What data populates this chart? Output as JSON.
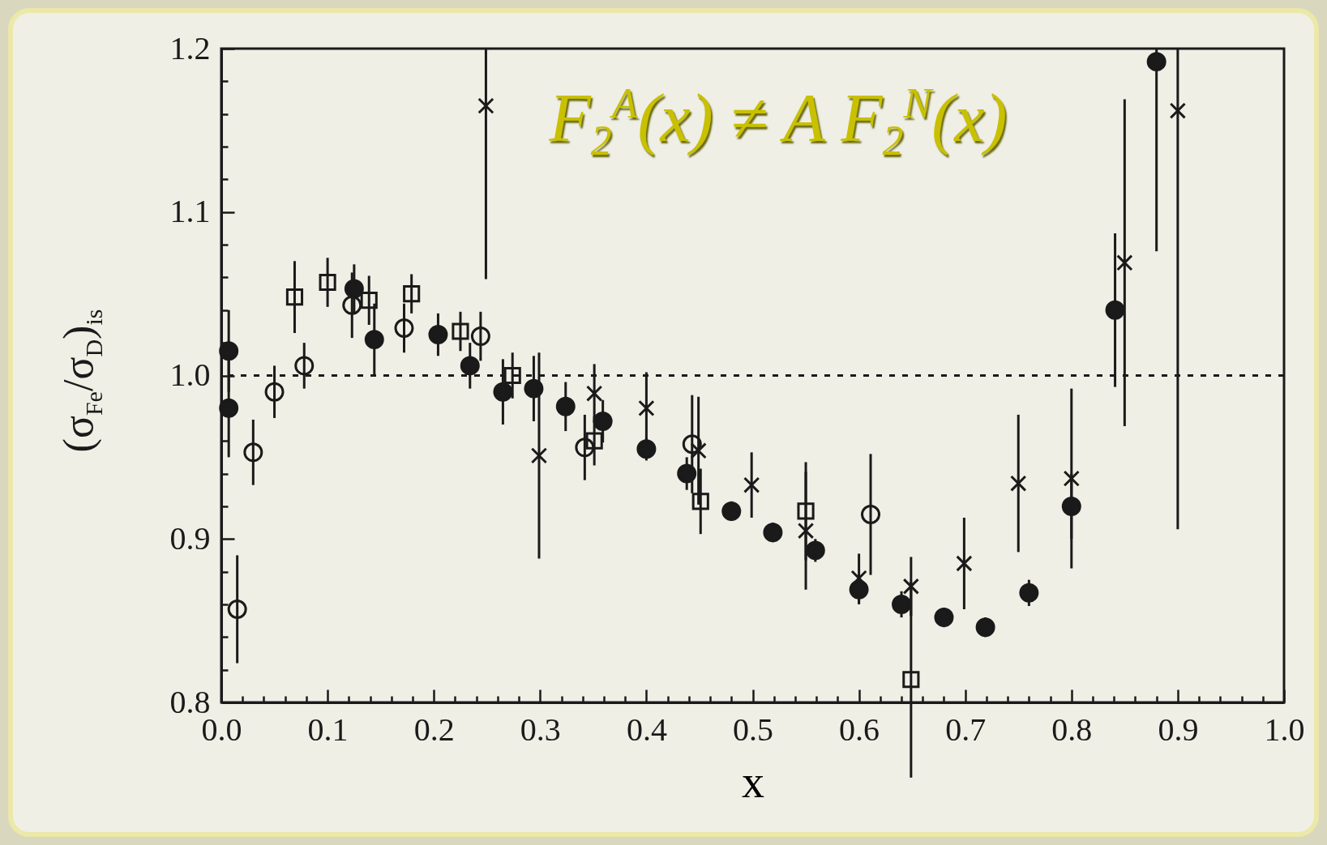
{
  "chart_data": {
    "type": "scatter",
    "xlabel": "x",
    "ylabel": "(σ$_{Fe}$/σ$_{D}$)$_{is}$",
    "annotations": [
      "F$_{2}$$^{A}$(x) ≠ A F$_{2}$$^{N}$(x)"
    ],
    "xlim": [
      0,
      1
    ],
    "ylim": [
      0.8,
      1.2
    ],
    "xticks": [
      {
        "value": 0,
        "label": "0.0"
      },
      {
        "value": 0.02,
        "label": null
      },
      {
        "value": 0.04,
        "label": null
      },
      {
        "value": 0.06,
        "label": null
      },
      {
        "value": 0.08,
        "label": null
      },
      {
        "value": 0.1,
        "label": "0.1"
      },
      {
        "value": 0.12,
        "label": null
      },
      {
        "value": 0.14,
        "label": null
      },
      {
        "value": 0.16,
        "label": null
      },
      {
        "value": 0.18,
        "label": null
      },
      {
        "value": 0.2,
        "label": "0.2"
      },
      {
        "value": 0.22,
        "label": null
      },
      {
        "value": 0.24,
        "label": null
      },
      {
        "value": 0.26,
        "label": null
      },
      {
        "value": 0.28,
        "label": null
      },
      {
        "value": 0.3,
        "label": "0.3"
      },
      {
        "value": 0.32,
        "label": null
      },
      {
        "value": 0.34,
        "label": null
      },
      {
        "value": 0.36,
        "label": null
      },
      {
        "value": 0.38,
        "label": null
      },
      {
        "value": 0.4,
        "label": "0.4"
      },
      {
        "value": 0.42,
        "label": null
      },
      {
        "value": 0.44,
        "label": null
      },
      {
        "value": 0.46,
        "label": null
      },
      {
        "value": 0.48,
        "label": null
      },
      {
        "value": 0.5,
        "label": "0.5"
      },
      {
        "value": 0.52,
        "label": null
      },
      {
        "value": 0.54,
        "label": null
      },
      {
        "value": 0.56,
        "label": null
      },
      {
        "value": 0.58,
        "label": null
      },
      {
        "value": 0.6,
        "label": "0.6"
      },
      {
        "value": 0.62,
        "label": null
      },
      {
        "value": 0.64,
        "label": null
      },
      {
        "value": 0.66,
        "label": null
      },
      {
        "value": 0.68,
        "label": null
      },
      {
        "value": 0.7,
        "label": "0.7"
      },
      {
        "value": 0.72,
        "label": null
      },
      {
        "value": 0.74,
        "label": null
      },
      {
        "value": 0.76,
        "label": null
      },
      {
        "value": 0.78,
        "label": null
      },
      {
        "value": 0.8,
        "label": "0.8"
      },
      {
        "value": 0.82,
        "label": null
      },
      {
        "value": 0.84,
        "label": null
      },
      {
        "value": 0.86,
        "label": null
      },
      {
        "value": 0.88,
        "label": null
      },
      {
        "value": 0.9,
        "label": "0.9"
      },
      {
        "value": 0.92,
        "label": null
      },
      {
        "value": 0.94,
        "label": null
      },
      {
        "value": 0.96,
        "label": null
      },
      {
        "value": 0.98,
        "label": null
      },
      {
        "value": 1,
        "label": "1.0"
      }
    ],
    "yticks": [
      0.8,
      {
        "value": 0.82,
        "label": null
      },
      {
        "value": 0.84,
        "label": null
      },
      {
        "value": 0.86,
        "label": null
      },
      {
        "value": 0.88,
        "label": null
      },
      0.9,
      {
        "value": 0.92,
        "label": null
      },
      {
        "value": 0.94,
        "label": null
      },
      {
        "value": 0.96,
        "label": null
      },
      {
        "value": 0.98,
        "label": null
      },
      {
        "value": 1,
        "label": "1.0"
      },
      {
        "value": 1.02,
        "label": null
      },
      {
        "value": 1.04,
        "label": null
      },
      {
        "value": 1.06,
        "label": null
      },
      {
        "value": 1.08,
        "label": null
      },
      1.1,
      {
        "value": 1.12,
        "label": null
      },
      {
        "value": 1.14,
        "label": null
      },
      {
        "value": 1.16,
        "label": null
      },
      {
        "value": 1.18,
        "label": null
      },
      1.2
    ],
    "ref_lines": [
      {
        "axis": "y",
        "value": 1,
        "line_style": "dashed"
      }
    ],
    "grid": false,
    "series": [
      {
        "marker": "circle",
        "color": "#1a1a1a",
        "x": [
          0.007,
          0.007,
          0.125,
          0.144,
          0.204,
          0.234,
          0.265,
          0.294,
          0.324,
          0.359,
          0.4,
          0.438,
          0.48,
          0.519,
          0.559,
          0.6,
          0.64,
          0.68,
          0.719,
          0.76,
          0.8,
          0.841,
          0.88
        ],
        "values": [
          1.015,
          0.98,
          1.053,
          1.022,
          1.025,
          1.006,
          0.99,
          0.992,
          0.981,
          0.972,
          0.955,
          0.94,
          0.917,
          0.904,
          0.893,
          0.869,
          0.86,
          0.852,
          0.846,
          0.867,
          0.92,
          1.04,
          1.192
        ],
        "errors": [
          0.025,
          0.03,
          0.015,
          0.022,
          0.013,
          0.014,
          0.02,
          0.02,
          0.015,
          0.013,
          0.007,
          0.01,
          0.006,
          0.006,
          0.007,
          0.009,
          0.008,
          0.006,
          0.006,
          0.008,
          0.02,
          0.047,
          [
            1.076,
            1.2
          ]
        ]
      },
      {
        "marker": "circle",
        "color": "#1a1a1a",
        "x": [
          0.015,
          0.03,
          0.05,
          0.078,
          0.123,
          0.172,
          0.244,
          0.342,
          0.443,
          0.611
        ],
        "values": [
          0.857,
          0.953,
          0.99,
          1.006,
          1.043,
          1.029,
          1.024,
          0.956,
          0.958,
          0.915
        ],
        "errors": [
          0.033,
          0.02,
          0.016,
          0.014,
          0.02,
          0.015,
          0.015,
          0.02,
          0.03,
          0.037
        ]
      },
      {
        "marker": "square",
        "color": "#1a1a1a",
        "x": [
          0.069,
          0.1,
          0.139,
          0.179,
          0.225,
          0.274,
          0.351,
          0.451,
          0.55,
          0.649
        ],
        "values": [
          1.048,
          1.057,
          1.046,
          1.05,
          1.027,
          1.0,
          0.96,
          0.923,
          0.917,
          0.814
        ],
        "errors": [
          0.022,
          0.015,
          0.015,
          0.012,
          0.012,
          0.014,
          0.015,
          0.02,
          0.03,
          0.06
        ]
      },
      {
        "marker": "cross",
        "color": "#1a1a1a",
        "x": [
          0.249,
          0.299,
          0.351,
          0.4,
          0.449,
          0.499,
          0.55,
          0.6,
          0.649,
          0.699,
          0.75,
          0.8,
          0.85,
          0.9
        ],
        "values": [
          1.165,
          0.951,
          0.989,
          0.98,
          0.954,
          0.933,
          0.905,
          0.876,
          0.871,
          0.885,
          0.934,
          0.937,
          1.069,
          1.162
        ],
        "errors": [
          [
            1.059,
            1.2
          ],
          0.063,
          0.018,
          0.022,
          0.033,
          0.02,
          0.036,
          0.015,
          0.018,
          0.028,
          0.042,
          0.055,
          0.1,
          [
            0.906,
            1.2
          ]
        ]
      }
    ]
  }
}
